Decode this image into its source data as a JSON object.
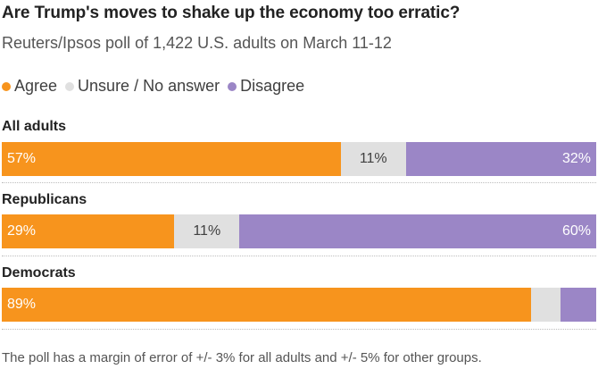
{
  "chart_data": {
    "type": "bar",
    "orientation": "horizontal",
    "stacked": true,
    "title": "Are Trump's moves to shake up the economy too erratic?",
    "subtitle": "Reuters/Ipsos poll of 1,422 U.S. adults on March 11-12",
    "categories": [
      "All adults",
      "Republicans",
      "Democrats"
    ],
    "series": [
      {
        "name": "Agree",
        "color": "#f7941d",
        "values": [
          57,
          29,
          89
        ],
        "labels": [
          "57%",
          "29%",
          "89%"
        ]
      },
      {
        "name": "Unsure / No answer",
        "color": "#e0e0e0",
        "values": [
          11,
          11,
          5
        ],
        "labels": [
          "11%",
          "11%",
          ""
        ]
      },
      {
        "name": "Disagree",
        "color": "#9b86c6",
        "values": [
          32,
          60,
          6
        ],
        "labels": [
          "32%",
          "60%",
          ""
        ]
      }
    ],
    "xlim": [
      0,
      100
    ],
    "footnote": "The poll has a margin of error of +/- 3% for all adults and +/- 5% for other groups."
  }
}
